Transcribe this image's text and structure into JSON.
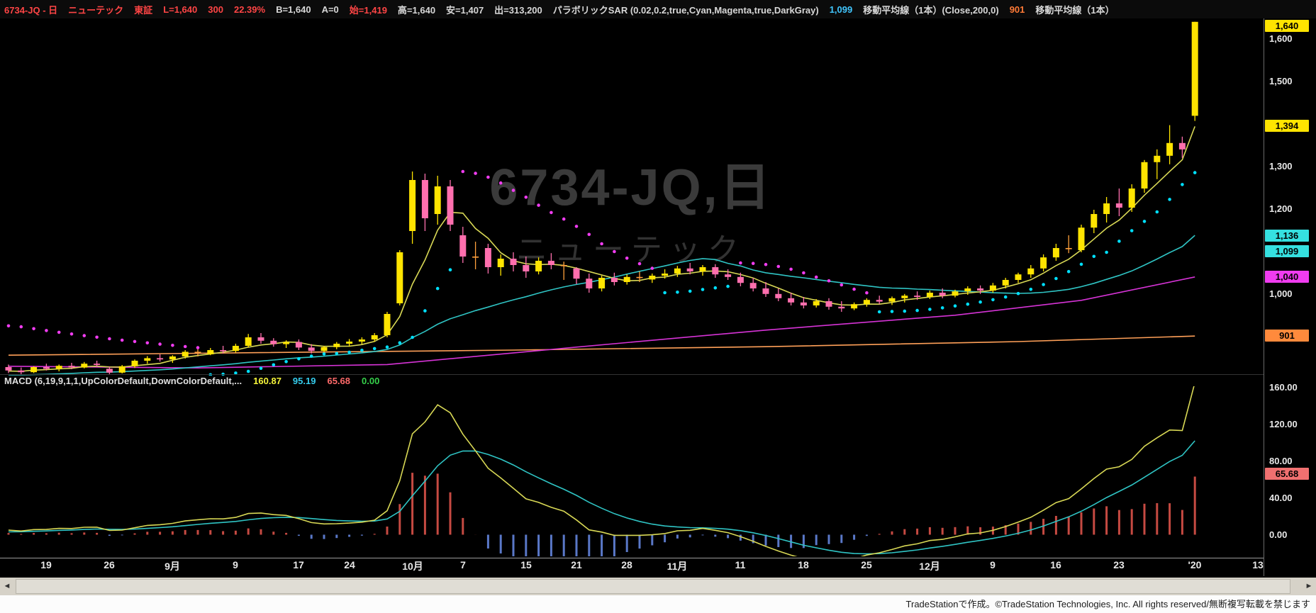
{
  "header": {
    "segments": [
      {
        "text": "6734-JQ - 日",
        "color": "#ff4545"
      },
      {
        "text": "ニューテック",
        "color": "#ff4545"
      },
      {
        "text": "東証",
        "color": "#ff4545"
      },
      {
        "text": "L=1,640",
        "color": "#ff4545"
      },
      {
        "text": "300",
        "color": "#ff4545"
      },
      {
        "text": "22.39%",
        "color": "#ff4545"
      },
      {
        "text": "B=1,640",
        "color": "#d8d8d8"
      },
      {
        "text": "A=0",
        "color": "#d8d8d8"
      },
      {
        "text": "始=1,419",
        "color": "#ff4545"
      },
      {
        "text": "高=1,640",
        "color": "#d8d8d8"
      },
      {
        "text": "安=1,407",
        "color": "#d8d8d8"
      },
      {
        "text": "出=313,200",
        "color": "#d8d8d8"
      },
      {
        "text": "パラボリックSAR (0.02,0.2,true,Cyan,Magenta,true,DarkGray)",
        "color": "#d8d8d8"
      },
      {
        "text": "1,099",
        "color": "#41c7ff"
      },
      {
        "text": "移動平均線（1本）(Close,200,0)",
        "color": "#d8d8d8"
      },
      {
        "text": "901",
        "color": "#ff7a36"
      },
      {
        "text": "移動平均線（1本）",
        "color": "#d8d8d8"
      }
    ]
  },
  "macd_label": {
    "segments": [
      {
        "text": "MACD (6,19,9,1,1,UpColorDefault,DownColorDefault,...",
        "color": "#e0e0e0"
      },
      {
        "text": "160.87",
        "color": "#f5f53a"
      },
      {
        "text": "95.19",
        "color": "#35cdee"
      },
      {
        "text": "65.68",
        "color": "#ff6a6a"
      },
      {
        "text": "0.00",
        "color": "#35d04a"
      }
    ]
  },
  "scrollbar": {
    "left": "◄",
    "right": "►"
  },
  "footer": {
    "text": "TradeStationで作成。©TradeStation Technologies, Inc. All rights reserved/無断複写転載を禁じます"
  },
  "chart_data": {
    "type": "candlestick",
    "title": "6734-JQ 日足 ニューテック",
    "watermark_line1": "6734-JQ,日",
    "watermark_line2": "ニューテック",
    "quote": {
      "last": "1,640",
      "change": "300",
      "change_pct": "22.39%",
      "bid": "1,640",
      "ask": "0",
      "open": "1,419",
      "high": "1,640",
      "low": "1,407",
      "volume": "313,200"
    },
    "colors": {
      "up": "#ffe400",
      "down": "#ff6fae",
      "flat": "#ffa03c",
      "sar_up": "#00e0ff",
      "sar_down": "#f03cf0",
      "hist_pos": "#c64a42",
      "hist_neg": "#5a78c8"
    },
    "candles": [
      [
        828,
        834,
        814,
        820
      ],
      [
        820,
        827,
        810,
        816
      ],
      [
        816,
        830,
        814,
        828
      ],
      [
        828,
        836,
        820,
        824
      ],
      [
        824,
        834,
        818,
        831
      ],
      [
        831,
        838,
        823,
        827
      ],
      [
        827,
        840,
        825,
        836
      ],
      [
        836,
        843,
        828,
        833
      ],
      [
        824,
        829,
        810,
        815
      ],
      [
        815,
        833,
        813,
        830
      ],
      [
        830,
        846,
        826,
        843
      ],
      [
        843,
        854,
        836,
        849
      ],
      [
        849,
        858,
        841,
        846
      ],
      [
        846,
        856,
        838,
        853
      ],
      [
        853,
        868,
        848,
        864
      ],
      [
        864,
        870,
        853,
        864
      ],
      [
        858,
        873,
        856,
        868
      ],
      [
        868,
        878,
        860,
        866
      ],
      [
        866,
        883,
        862,
        878
      ],
      [
        878,
        906,
        874,
        898
      ],
      [
        898,
        908,
        883,
        890
      ],
      [
        890,
        896,
        876,
        882
      ],
      [
        882,
        891,
        873,
        887
      ],
      [
        887,
        893,
        868,
        874
      ],
      [
        874,
        882,
        860,
        866
      ],
      [
        866,
        878,
        863,
        875
      ],
      [
        875,
        887,
        870,
        883
      ],
      [
        883,
        894,
        876,
        888
      ],
      [
        888,
        898,
        882,
        893
      ],
      [
        893,
        908,
        888,
        903
      ],
      [
        903,
        958,
        898,
        953
      ],
      [
        978,
        1103,
        973,
        1098
      ],
      [
        1148,
        1288,
        1118,
        1268
      ],
      [
        1268,
        1283,
        1148,
        1178
      ],
      [
        1188,
        1278,
        1163,
        1253
      ],
      [
        1253,
        1268,
        1148,
        1163
      ],
      [
        1138,
        1158,
        1073,
        1088
      ],
      [
        1088,
        1123,
        1058,
        1088
      ],
      [
        1108,
        1118,
        1048,
        1063
      ],
      [
        1063,
        1093,
        1043,
        1083
      ],
      [
        1083,
        1098,
        1053,
        1068
      ],
      [
        1068,
        1088,
        1038,
        1053
      ],
      [
        1053,
        1086,
        1046,
        1078
      ],
      [
        1078,
        1096,
        1058,
        1068
      ],
      [
        1068,
        1076,
        1033,
        1068
      ],
      [
        1060,
        1063,
        1023,
        1036
      ],
      [
        1036,
        1048,
        1003,
        1013
      ],
      [
        1013,
        1043,
        1006,
        1038
      ],
      [
        1038,
        1050,
        1020,
        1028
      ],
      [
        1028,
        1046,
        1022,
        1040
      ],
      [
        1040,
        1053,
        1028,
        1040
      ],
      [
        1034,
        1048,
        1026,
        1043
      ],
      [
        1043,
        1058,
        1036,
        1048
      ],
      [
        1048,
        1066,
        1040,
        1060
      ],
      [
        1060,
        1073,
        1046,
        1053
      ],
      [
        1053,
        1068,
        1043,
        1063
      ],
      [
        1063,
        1070,
        1038,
        1046
      ],
      [
        1046,
        1058,
        1033,
        1040
      ],
      [
        1040,
        1050,
        1018,
        1026
      ],
      [
        1026,
        1038,
        1006,
        1013
      ],
      [
        1013,
        1028,
        993,
        1000
      ],
      [
        1000,
        1013,
        983,
        990
      ],
      [
        990,
        1003,
        973,
        980
      ],
      [
        980,
        993,
        966,
        973
      ],
      [
        973,
        988,
        968,
        983
      ],
      [
        983,
        990,
        963,
        970
      ],
      [
        970,
        983,
        958,
        966
      ],
      [
        966,
        980,
        962,
        976
      ],
      [
        976,
        990,
        970,
        986
      ],
      [
        986,
        996,
        976,
        982
      ],
      [
        982,
        994,
        974,
        990
      ],
      [
        990,
        1000,
        980,
        996
      ],
      [
        996,
        1006,
        986,
        993
      ],
      [
        993,
        1008,
        988,
        1003
      ],
      [
        1003,
        1013,
        990,
        996
      ],
      [
        996,
        1010,
        992,
        1006
      ],
      [
        1006,
        1018,
        998,
        1013
      ],
      [
        1013,
        1020,
        1000,
        1008
      ],
      [
        1008,
        1026,
        1003,
        1020
      ],
      [
        1020,
        1038,
        1013,
        1033
      ],
      [
        1033,
        1050,
        1026,
        1046
      ],
      [
        1046,
        1068,
        1038,
        1060
      ],
      [
        1060,
        1093,
        1053,
        1086
      ],
      [
        1086,
        1118,
        1078,
        1108
      ],
      [
        1108,
        1138,
        1096,
        1108
      ],
      [
        1103,
        1163,
        1098,
        1156
      ],
      [
        1156,
        1198,
        1143,
        1188
      ],
      [
        1188,
        1228,
        1168,
        1213
      ],
      [
        1213,
        1248,
        1183,
        1203
      ],
      [
        1203,
        1258,
        1193,
        1248
      ],
      [
        1248,
        1315,
        1238,
        1310
      ],
      [
        1310,
        1340,
        1270,
        1325
      ],
      [
        1325,
        1397,
        1305,
        1355
      ],
      [
        1355,
        1370,
        1320,
        1340
      ],
      [
        1419,
        1640,
        1407,
        1640
      ]
    ],
    "pre_closes": [
      812,
      815,
      810,
      808,
      805,
      800,
      798,
      802,
      806,
      804,
      808,
      812,
      810,
      806,
      803,
      800,
      804,
      808,
      812,
      816,
      820,
      818,
      815,
      818,
      822
    ],
    "x_axis": {
      "ticks": [
        {
          "i": 3,
          "label": "19"
        },
        {
          "i": 8,
          "label": "26"
        },
        {
          "i": 13,
          "label": "9月"
        },
        {
          "i": 18,
          "label": "9"
        },
        {
          "i": 23,
          "label": "17"
        },
        {
          "i": 27,
          "label": "24"
        },
        {
          "i": 32,
          "label": "10月"
        },
        {
          "i": 36,
          "label": "7"
        },
        {
          "i": 41,
          "label": "15"
        },
        {
          "i": 45,
          "label": "21"
        },
        {
          "i": 49,
          "label": "28"
        },
        {
          "i": 53,
          "label": "11月"
        },
        {
          "i": 58,
          "label": "11"
        },
        {
          "i": 63,
          "label": "18"
        },
        {
          "i": 68,
          "label": "25"
        },
        {
          "i": 73,
          "label": "12月"
        },
        {
          "i": 78,
          "label": "9"
        },
        {
          "i": 83,
          "label": "16"
        },
        {
          "i": 88,
          "label": "23"
        },
        {
          "i": 94,
          "label": "'20"
        },
        {
          "i": 99,
          "label": "13"
        }
      ]
    },
    "y_axis": {
      "max": 1648,
      "min": 808,
      "ticks": [
        {
          "v": 1600,
          "label": "1,600"
        },
        {
          "v": 1500,
          "label": "1,500"
        },
        {
          "v": 1300,
          "label": "1,300"
        },
        {
          "v": 1200,
          "label": "1,200"
        },
        {
          "v": 1000,
          "label": "1,000"
        }
      ],
      "badges": [
        {
          "v": 1640,
          "label": "1,640",
          "bg": "#ffe400"
        },
        {
          "v": 1394,
          "label": "1,394",
          "bg": "#ffe400"
        },
        {
          "v": 1136,
          "label": "1,136",
          "bg": "#35e0e0"
        },
        {
          "v": 1099,
          "label": "1,099",
          "bg": "#35e0e0"
        },
        {
          "v": 1040,
          "label": "1,040",
          "bg": "#f03cf0"
        },
        {
          "v": 901,
          "label": "901",
          "bg": "#ff8a3c"
        }
      ]
    },
    "lines": {
      "ma_fast": {
        "period": 5,
        "color": "#d8d855"
      },
      "ma_mid": {
        "period": 25,
        "color": "#2fc4c4"
      },
      "ma75": {
        "color": "#d633d6",
        "points": [
          [
            0,
            830
          ],
          [
            15,
            826
          ],
          [
            30,
            834
          ],
          [
            45,
            875
          ],
          [
            60,
            915
          ],
          [
            75,
            950
          ],
          [
            85,
            985
          ],
          [
            94,
            1040
          ]
        ]
      },
      "ma200": {
        "color": "#ffa058",
        "points": [
          [
            0,
            856
          ],
          [
            20,
            862
          ],
          [
            40,
            868
          ],
          [
            60,
            876
          ],
          [
            80,
            888
          ],
          [
            94,
            901
          ]
        ]
      }
    },
    "sar": {
      "af_start": 0.02,
      "af_step": 0.02,
      "af_max": 0.2,
      "seed": 925,
      "last_value": "1,099"
    },
    "macd_chart": {
      "params": {
        "fast": 6,
        "slow": 19,
        "signal": 9
      },
      "line_color": "#d8d855",
      "signal_color": "#2fc4c4",
      "axis": {
        "max": 161.5,
        "min": -23.5,
        "ticks": [
          {
            "v": 160,
            "label": "160.00"
          },
          {
            "v": 120,
            "label": "120.00"
          },
          {
            "v": 80,
            "label": "80.00"
          },
          {
            "v": 40,
            "label": "40.00"
          },
          {
            "v": 0,
            "label": "0.00"
          }
        ],
        "badges": [
          {
            "v": 65.68,
            "label": "65.68",
            "bg": "#f07070"
          }
        ]
      }
    }
  }
}
